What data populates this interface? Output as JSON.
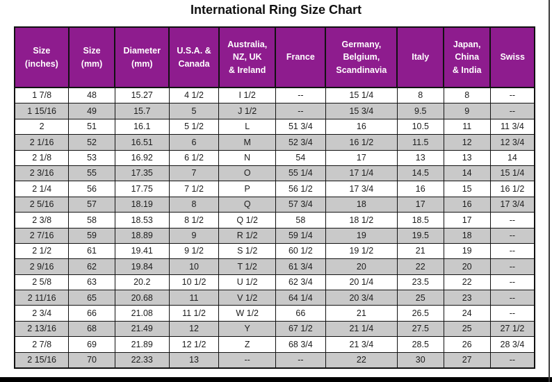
{
  "title": "International Ring Size Chart",
  "colors": {
    "header_bg": "#8e1c8e",
    "header_text": "#ffffff",
    "row_white": "#ffffff",
    "row_gray": "#c9c9c9",
    "border": "#111111",
    "bottom_bar": "#000000"
  },
  "chart_data": {
    "type": "table",
    "title": "International Ring Size Chart",
    "columns": [
      "Size\n(inches)",
      "Size\n(mm)",
      "Diameter\n(mm)",
      "U.S.A. &\nCanada",
      "Australia,\nNZ, UK\n& Ireland",
      "France",
      "Germany,\nBelgium,\nScandinavia",
      "Italy",
      "Japan,\nChina\n& India",
      "Swiss"
    ],
    "rows": [
      [
        "1  7/8",
        "48",
        "15.27",
        "4 1/2",
        "I 1/2",
        "--",
        "15 1/4",
        "8",
        "8",
        "--"
      ],
      [
        "1 15/16",
        "49",
        "15.7",
        "5",
        "J 1/2",
        "--",
        "15 3/4",
        "9.5",
        "9",
        "--"
      ],
      [
        "2",
        "51",
        "16.1",
        "5 1/2",
        "L",
        "51 3/4",
        "16",
        "10.5",
        "11",
        "11 3/4"
      ],
      [
        "2  1/16",
        "52",
        "16.51",
        "6",
        "M",
        "52 3/4",
        "16 1/2",
        "11.5",
        "12",
        "12 3/4"
      ],
      [
        "2  1/8",
        "53",
        "16.92",
        "6 1/2",
        "N",
        "54",
        "17",
        "13",
        "13",
        "14"
      ],
      [
        "2  3/16",
        "55",
        "17.35",
        "7",
        "O",
        "55 1/4",
        "17 1/4",
        "14.5",
        "14",
        "15 1/4"
      ],
      [
        "2  1/4",
        "56",
        "17.75",
        "7 1/2",
        "P",
        "56 1/2",
        "17 3/4",
        "16",
        "15",
        "16 1/2"
      ],
      [
        "2  5/16",
        "57",
        "18.19",
        "8",
        "Q",
        "57 3/4",
        "18",
        "17",
        "16",
        "17 3/4"
      ],
      [
        "2  3/8",
        "58",
        "18.53",
        "8 1/2",
        "Q 1/2",
        "58",
        "18 1/2",
        "18.5",
        "17",
        "--"
      ],
      [
        "2  7/16",
        "59",
        "18.89",
        "9",
        "R 1/2",
        "59 1/4",
        "19",
        "19.5",
        "18",
        "--"
      ],
      [
        "2  1/2",
        "61",
        "19.41",
        "9 1/2",
        "S 1/2",
        "60 1/2",
        "19 1/2",
        "21",
        "19",
        "--"
      ],
      [
        "2  9/16",
        "62",
        "19.84",
        "10",
        "T 1/2",
        "61 3/4",
        "20",
        "22",
        "20",
        "--"
      ],
      [
        "2  5/8",
        "63",
        "20.2",
        "10 1/2",
        "U 1/2",
        "62 3/4",
        "20 1/4",
        "23.5",
        "22",
        "--"
      ],
      [
        "2 11/16",
        "65",
        "20.68",
        "11",
        "V 1/2",
        "64 1/4",
        "20 3/4",
        "25",
        "23",
        "--"
      ],
      [
        "2  3/4",
        "66",
        "21.08",
        "11 1/2",
        "W 1/2",
        "66",
        "21",
        "26.5",
        "24",
        "--"
      ],
      [
        "2 13/16",
        "68",
        "21.49",
        "12",
        "Y",
        "67 1/2",
        "21 1/4",
        "27.5",
        "25",
        "27 1/2"
      ],
      [
        "2  7/8",
        "69",
        "21.89",
        "12 1/2",
        "Z",
        "68 3/4",
        "21 3/4",
        "28.5",
        "26",
        "28 3/4"
      ],
      [
        "2 15/16",
        "70",
        "22.33",
        "13",
        "--",
        "--",
        "22",
        "30",
        "27",
        "--"
      ]
    ]
  }
}
